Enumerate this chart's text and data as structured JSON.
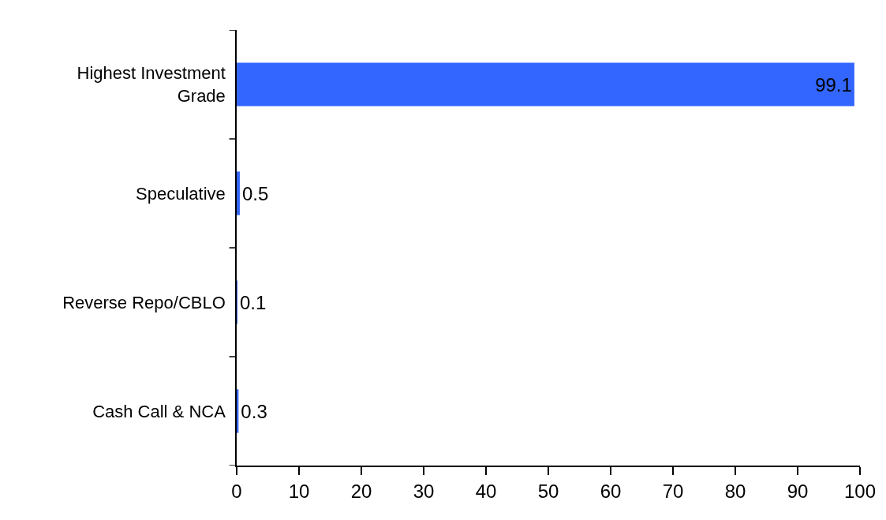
{
  "chart_data": {
    "type": "bar",
    "orientation": "horizontal",
    "categories": [
      "Highest Investment Grade",
      "Speculative",
      "Reverse Repo/CBLO",
      "Cash Call & NCA"
    ],
    "values": [
      99.1,
      0.5,
      0.1,
      0.3
    ],
    "color": "#3366ff",
    "xlim": [
      0,
      100
    ],
    "xticks": [
      0,
      10,
      20,
      30,
      40,
      50,
      60,
      70,
      80,
      90,
      100
    ],
    "data_labels": true
  }
}
